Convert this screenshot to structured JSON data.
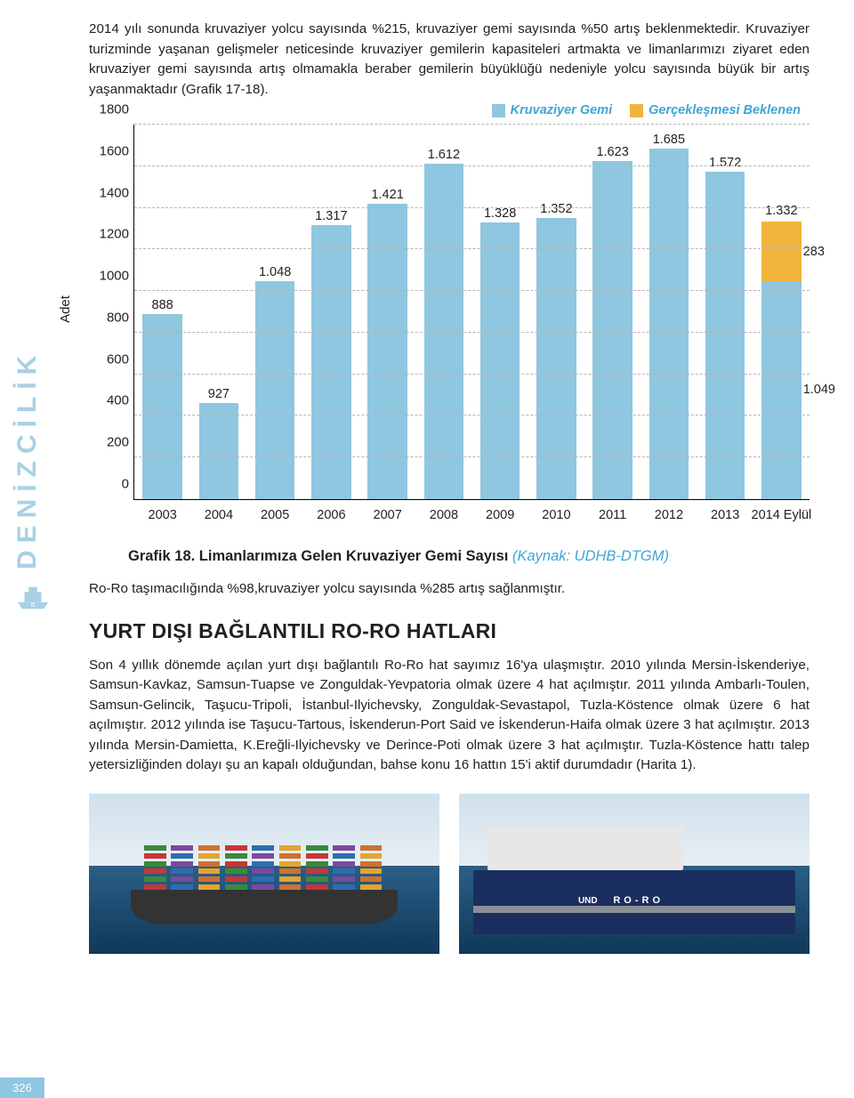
{
  "intro": "2014 yılı sonunda kruvaziyer yolcu sayısında %215, kruvaziyer gemi sayısında %50 artış beklenmektedir. Kruvaziyer turizminde yaşanan gelişmeler neticesinde kruvaziyer gemilerin kapasiteleri artmakta ve limanlarımızı ziyaret eden kruvaziyer gemi sayısında artış olmamakla beraber gemilerin büyüklüğü nedeniyle yolcu sayısında büyük bir artış yaşanmaktadır (Grafik 17-18).",
  "legend": {
    "series1": {
      "label": "Kruvaziyer Gemi",
      "color": "#8fc6e0"
    },
    "series2": {
      "label": "Gerçekleşmesi Beklenen",
      "color": "#f0b43c"
    }
  },
  "chart": {
    "type": "bar",
    "y_label": "Adet",
    "ymax": 1800,
    "ytick_step": 200,
    "bar_color": "#8fc6e0",
    "stack_color": "#f0b43c",
    "grid_color": "#b5b5b5",
    "bars": [
      {
        "x": "2003",
        "v": 888,
        "label": "888"
      },
      {
        "x": "2004",
        "v": 927,
        "label": "927",
        "shrink": true
      },
      {
        "x": "2005",
        "v": 1048,
        "label": "1.048"
      },
      {
        "x": "2006",
        "v": 1317,
        "label": "1.317"
      },
      {
        "x": "2007",
        "v": 1421,
        "label": "1.421"
      },
      {
        "x": "2008",
        "v": 1612,
        "label": "1.612"
      },
      {
        "x": "2009",
        "v": 1328,
        "label": "1.328"
      },
      {
        "x": "2010",
        "v": 1352,
        "label": "1.352"
      },
      {
        "x": "2011",
        "v": 1623,
        "label": "1.623"
      },
      {
        "x": "2012",
        "v": 1685,
        "label": "1.685"
      },
      {
        "x": "2013",
        "v": 1572,
        "label": "1.572"
      },
      {
        "x": "2014 Eylül",
        "v": 1049,
        "label": "1.049",
        "stack": {
          "v": 283,
          "label": "283",
          "top_label": "1.332"
        }
      }
    ]
  },
  "caption_bold": "Grafik 18. Limanlarımıza Gelen Kruvaziyer Gemi Sayısı",
  "caption_src": "(Kaynak: UDHB-DTGM)",
  "midtext": "Ro-Ro taşımacılığında %98,kruvaziyer yolcu sayısında %285 artış sağlanmıştır.",
  "heading": "YURT DIŞI BAĞLANTILI RO-RO HATLARI",
  "para": "Son 4 yıllık dönemde açılan yurt dışı bağlantılı Ro-Ro hat sayımız 16'ya ulaşmıştır. 2010 yılında Mersin-İskenderiye, Samsun-Kavkaz, Samsun-Tuapse ve Zonguldak-Yevpatoria olmak üzere 4 hat açılmıştır. 2011 yılında Ambarlı-Toulen, Samsun-Gelincik, Taşucu-Tripoli, İstanbul-Ilyichevsky, Zonguldak-Sevastapol, Tuzla-Köstence olmak üzere 6 hat açılmıştır. 2012 yılında ise Taşucu-Tartous, İskenderun-Port Said ve İskenderun-Haifa olmak üzere 3 hat açılmıştır. 2013 yılında Mersin-Damietta, K.Ereğli-Ilyichevsky ve Derince-Poti olmak üzere 3 hat açılmıştır. Tuzla-Köstence hattı talep yetersizliğinden dolayı şu an kapalı olduğundan, bahse konu 16 hattın 15'i aktif durumdadır (Harita 1).",
  "side_label": "DENİZCİLİK",
  "photos": {
    "left": {
      "roro": "RO-RO",
      "und": "UND"
    }
  },
  "page_number": "326",
  "container_colors": [
    "#c73636",
    "#2e6db0",
    "#e3a52c",
    "#3a8a3a",
    "#7a4aa0",
    "#d07030"
  ]
}
